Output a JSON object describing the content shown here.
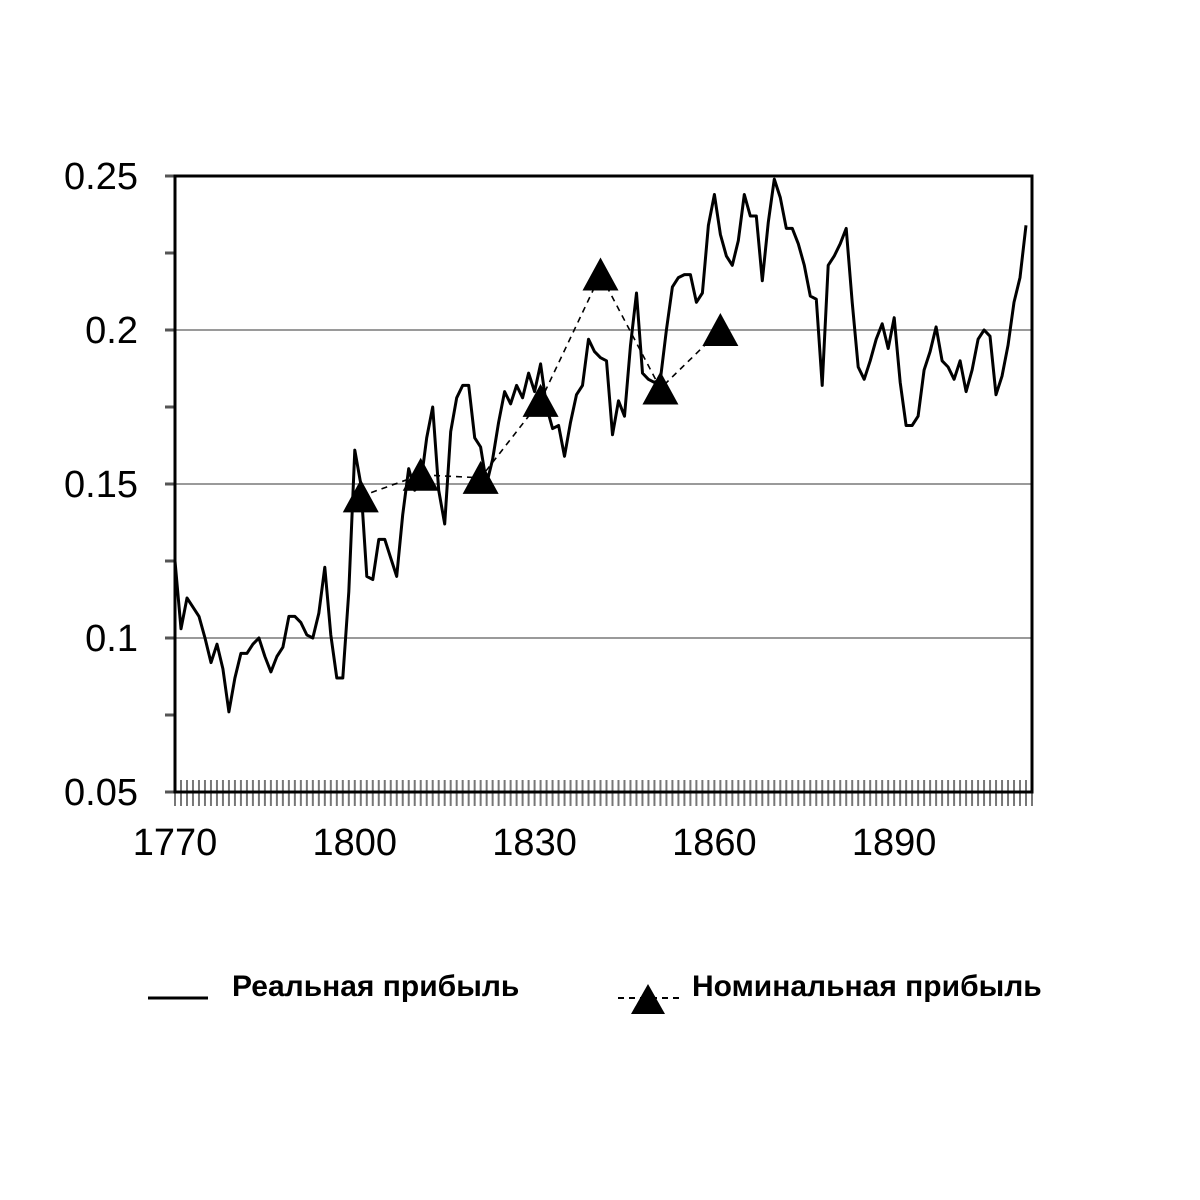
{
  "chart_data": {
    "type": "line",
    "title": "",
    "xlabel": "",
    "ylabel": "",
    "xlim": [
      1770,
      1913
    ],
    "ylim": [
      0.05,
      0.25
    ],
    "x_ticks": [
      1770,
      1800,
      1830,
      1860,
      1890
    ],
    "x_tick_labels": [
      "1770",
      "1800",
      "1830",
      "1860",
      "1890"
    ],
    "y_ticks": [
      0.05,
      0.1,
      0.15,
      0.2,
      0.25
    ],
    "y_tick_labels": [
      "0.05",
      "0.1",
      "0.15",
      "0.2",
      "0.25"
    ],
    "grid": "horizontal",
    "legend_position": "bottom",
    "series": [
      {
        "name": "Реальная прибыль",
        "style": "solid",
        "color": "#000000",
        "points": [
          [
            1770,
            0.125
          ],
          [
            1771,
            0.103
          ],
          [
            1772,
            0.113
          ],
          [
            1773,
            0.11
          ],
          [
            1774,
            0.107
          ],
          [
            1775,
            0.1
          ],
          [
            1776,
            0.092
          ],
          [
            1777,
            0.098
          ],
          [
            1778,
            0.09
          ],
          [
            1779,
            0.076
          ],
          [
            1780,
            0.087
          ],
          [
            1781,
            0.095
          ],
          [
            1782,
            0.095
          ],
          [
            1783,
            0.098
          ],
          [
            1784,
            0.1
          ],
          [
            1785,
            0.094
          ],
          [
            1786,
            0.089
          ],
          [
            1787,
            0.094
          ],
          [
            1788,
            0.097
          ],
          [
            1789,
            0.107
          ],
          [
            1790,
            0.107
          ],
          [
            1791,
            0.105
          ],
          [
            1792,
            0.101
          ],
          [
            1793,
            0.1
          ],
          [
            1794,
            0.108
          ],
          [
            1795,
            0.123
          ],
          [
            1796,
            0.101
          ],
          [
            1797,
            0.087
          ],
          [
            1798,
            0.087
          ],
          [
            1799,
            0.115
          ],
          [
            1800,
            0.161
          ],
          [
            1801,
            0.15
          ],
          [
            1802,
            0.12
          ],
          [
            1803,
            0.119
          ],
          [
            1804,
            0.132
          ],
          [
            1805,
            0.132
          ],
          [
            1806,
            0.126
          ],
          [
            1807,
            0.12
          ],
          [
            1808,
            0.14
          ],
          [
            1809,
            0.155
          ],
          [
            1810,
            0.148
          ],
          [
            1811,
            0.15
          ],
          [
            1812,
            0.165
          ],
          [
            1813,
            0.175
          ],
          [
            1814,
            0.148
          ],
          [
            1815,
            0.137
          ],
          [
            1816,
            0.167
          ],
          [
            1817,
            0.178
          ],
          [
            1818,
            0.182
          ],
          [
            1819,
            0.182
          ],
          [
            1820,
            0.165
          ],
          [
            1821,
            0.162
          ],
          [
            1822,
            0.15
          ],
          [
            1823,
            0.158
          ],
          [
            1824,
            0.17
          ],
          [
            1825,
            0.18
          ],
          [
            1826,
            0.176
          ],
          [
            1827,
            0.182
          ],
          [
            1828,
            0.178
          ],
          [
            1829,
            0.186
          ],
          [
            1830,
            0.18
          ],
          [
            1831,
            0.189
          ],
          [
            1832,
            0.175
          ],
          [
            1833,
            0.168
          ],
          [
            1834,
            0.169
          ],
          [
            1835,
            0.159
          ],
          [
            1836,
            0.17
          ],
          [
            1837,
            0.179
          ],
          [
            1838,
            0.182
          ],
          [
            1839,
            0.197
          ],
          [
            1840,
            0.193
          ],
          [
            1841,
            0.191
          ],
          [
            1842,
            0.19
          ],
          [
            1843,
            0.166
          ],
          [
            1844,
            0.177
          ],
          [
            1845,
            0.172
          ],
          [
            1846,
            0.195
          ],
          [
            1847,
            0.212
          ],
          [
            1848,
            0.186
          ],
          [
            1849,
            0.184
          ],
          [
            1850,
            0.183
          ],
          [
            1851,
            0.184
          ],
          [
            1852,
            0.2
          ],
          [
            1853,
            0.214
          ],
          [
            1854,
            0.217
          ],
          [
            1855,
            0.218
          ],
          [
            1856,
            0.218
          ],
          [
            1857,
            0.209
          ],
          [
            1858,
            0.212
          ],
          [
            1859,
            0.234
          ],
          [
            1860,
            0.244
          ],
          [
            1861,
            0.231
          ],
          [
            1862,
            0.224
          ],
          [
            1863,
            0.221
          ],
          [
            1864,
            0.229
          ],
          [
            1865,
            0.244
          ],
          [
            1866,
            0.237
          ],
          [
            1867,
            0.237
          ],
          [
            1868,
            0.216
          ],
          [
            1869,
            0.235
          ],
          [
            1870,
            0.249
          ],
          [
            1871,
            0.243
          ],
          [
            1872,
            0.233
          ],
          [
            1873,
            0.233
          ],
          [
            1874,
            0.228
          ],
          [
            1875,
            0.221
          ],
          [
            1876,
            0.211
          ],
          [
            1877,
            0.21
          ],
          [
            1878,
            0.182
          ],
          [
            1879,
            0.221
          ],
          [
            1880,
            0.224
          ],
          [
            1881,
            0.228
          ],
          [
            1882,
            0.233
          ],
          [
            1883,
            0.209
          ],
          [
            1884,
            0.188
          ],
          [
            1885,
            0.184
          ],
          [
            1886,
            0.19
          ],
          [
            1887,
            0.197
          ],
          [
            1888,
            0.202
          ],
          [
            1889,
            0.194
          ],
          [
            1890,
            0.204
          ],
          [
            1891,
            0.183
          ],
          [
            1892,
            0.169
          ],
          [
            1893,
            0.169
          ],
          [
            1894,
            0.172
          ],
          [
            1895,
            0.187
          ],
          [
            1896,
            0.193
          ],
          [
            1897,
            0.201
          ],
          [
            1898,
            0.19
          ],
          [
            1899,
            0.188
          ],
          [
            1900,
            0.184
          ],
          [
            1901,
            0.19
          ],
          [
            1902,
            0.18
          ],
          [
            1903,
            0.187
          ],
          [
            1904,
            0.197
          ],
          [
            1905,
            0.2
          ],
          [
            1906,
            0.198
          ],
          [
            1907,
            0.179
          ],
          [
            1908,
            0.185
          ],
          [
            1909,
            0.195
          ],
          [
            1910,
            0.209
          ],
          [
            1911,
            0.217
          ],
          [
            1912,
            0.234
          ]
        ]
      },
      {
        "name": "Номинальная прибыль",
        "style": "dashed",
        "marker": "triangle",
        "color": "#000000",
        "points": [
          [
            1801,
            0.146
          ],
          [
            1811,
            0.153
          ],
          [
            1821,
            0.152
          ],
          [
            1831,
            0.177
          ],
          [
            1841,
            0.218
          ],
          [
            1851,
            0.181
          ],
          [
            1861,
            0.2
          ]
        ]
      }
    ]
  }
}
